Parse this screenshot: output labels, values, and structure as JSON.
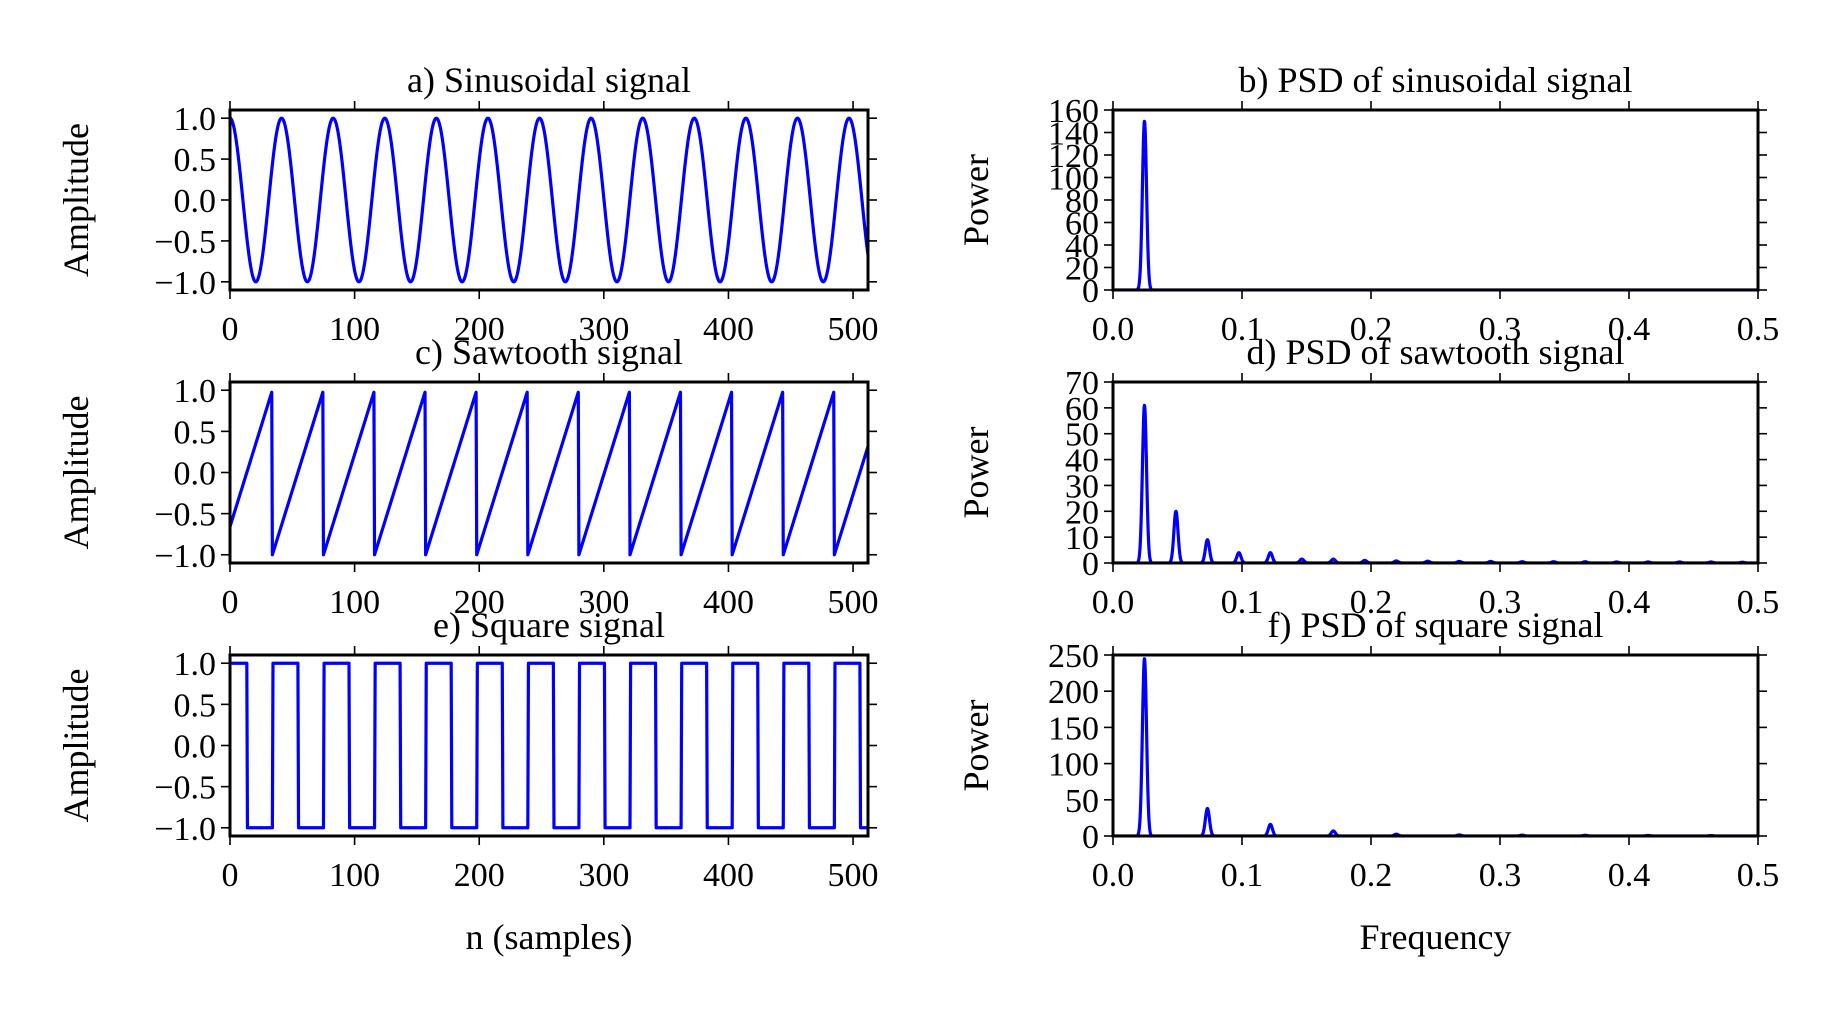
{
  "series_color": "#0000ff",
  "chart_data": [
    {
      "id": "a",
      "type": "line",
      "title": "a) Sinusoidal signal",
      "xlabel": "",
      "ylabel": "Amplitude",
      "xlim": [
        0,
        512
      ],
      "ylim": [
        -1.1,
        1.1
      ],
      "xticks": [
        "0",
        "100",
        "200",
        "300",
        "400",
        "500"
      ],
      "yticks": [
        "1.0",
        "0.5",
        "0.0",
        "−0.5",
        "−1.0"
      ],
      "signal": {
        "kind": "cosine",
        "period_samples": 41.4,
        "amplitude": 1.0
      }
    },
    {
      "id": "b",
      "type": "line",
      "title": "b) PSD of sinusoidal signal",
      "xlabel": "",
      "ylabel": "Power",
      "xlim": [
        0,
        0.5
      ],
      "ylim": [
        0,
        160
      ],
      "xticks": [
        "0.0",
        "0.1",
        "0.2",
        "0.3",
        "0.4",
        "0.5"
      ],
      "yticks": [
        "160",
        "140",
        "120",
        "100",
        "80",
        "60",
        "40",
        "20",
        "0"
      ],
      "peaks": [
        {
          "f": 0.0244,
          "power": 150
        }
      ]
    },
    {
      "id": "c",
      "type": "line",
      "title": "c) Sawtooth signal",
      "xlabel": "",
      "ylabel": "Amplitude",
      "xlim": [
        0,
        512
      ],
      "ylim": [
        -1.1,
        1.1
      ],
      "xticks": [
        "0",
        "100",
        "200",
        "300",
        "400",
        "500"
      ],
      "yticks": [
        "1.0",
        "0.5",
        "0.0",
        "−0.5",
        "−1.0"
      ],
      "signal": {
        "kind": "sawtooth",
        "period_samples": 41,
        "first_drop": 34,
        "amplitude": 1.0
      }
    },
    {
      "id": "d",
      "type": "line",
      "title": "d) PSD of sawtooth signal",
      "xlabel": "",
      "ylabel": "Power",
      "xlim": [
        0,
        0.5
      ],
      "ylim": [
        0,
        70
      ],
      "xticks": [
        "0.0",
        "0.1",
        "0.2",
        "0.3",
        "0.4",
        "0.5"
      ],
      "yticks": [
        "70",
        "60",
        "50",
        "40",
        "30",
        "20",
        "10",
        "0"
      ],
      "peaks": [
        {
          "f": 0.0244,
          "power": 61
        },
        {
          "f": 0.0488,
          "power": 20
        },
        {
          "f": 0.0732,
          "power": 9
        },
        {
          "f": 0.0976,
          "power": 4
        },
        {
          "f": 0.122,
          "power": 4
        },
        {
          "f": 0.1464,
          "power": 1.5
        },
        {
          "f": 0.1708,
          "power": 1.5
        },
        {
          "f": 0.1952,
          "power": 1
        },
        {
          "f": 0.2196,
          "power": 0.8
        },
        {
          "f": 0.244,
          "power": 0.7
        },
        {
          "f": 0.2684,
          "power": 0.6
        },
        {
          "f": 0.2928,
          "power": 0.6
        },
        {
          "f": 0.3172,
          "power": 0.5
        },
        {
          "f": 0.3416,
          "power": 0.5
        },
        {
          "f": 0.366,
          "power": 0.5
        },
        {
          "f": 0.3904,
          "power": 0.4
        },
        {
          "f": 0.4148,
          "power": 0.4
        },
        {
          "f": 0.4392,
          "power": 0.4
        },
        {
          "f": 0.4636,
          "power": 0.4
        },
        {
          "f": 0.488,
          "power": 0.3
        }
      ]
    },
    {
      "id": "e",
      "type": "line",
      "title": "e) Square signal",
      "xlabel": "n (samples)",
      "ylabel": "Amplitude",
      "xlim": [
        0,
        512
      ],
      "ylim": [
        -1.1,
        1.1
      ],
      "xticks": [
        "0",
        "100",
        "200",
        "300",
        "400",
        "500"
      ],
      "yticks": [
        "1.0",
        "0.5",
        "0.0",
        "−0.5",
        "−1.0"
      ],
      "signal": {
        "kind": "square",
        "period_samples": 41,
        "first_drop": 14,
        "high_samples": 20.5,
        "amplitude": 1.0
      }
    },
    {
      "id": "f",
      "type": "line",
      "title": "f) PSD of square signal",
      "xlabel": "Frequency",
      "ylabel": "Power",
      "xlim": [
        0,
        0.5
      ],
      "ylim": [
        0,
        250
      ],
      "xticks": [
        "0.0",
        "0.1",
        "0.2",
        "0.3",
        "0.4",
        "0.5"
      ],
      "yticks": [
        "250",
        "200",
        "150",
        "100",
        "50",
        "0"
      ],
      "peaks": [
        {
          "f": 0.0244,
          "power": 245
        },
        {
          "f": 0.0732,
          "power": 38
        },
        {
          "f": 0.122,
          "power": 16
        },
        {
          "f": 0.1708,
          "power": 7
        },
        {
          "f": 0.2196,
          "power": 2.5
        },
        {
          "f": 0.2684,
          "power": 1.5
        },
        {
          "f": 0.3172,
          "power": 1.2
        },
        {
          "f": 0.366,
          "power": 1
        },
        {
          "f": 0.4148,
          "power": 0.8
        },
        {
          "f": 0.4636,
          "power": 0.6
        }
      ]
    }
  ]
}
